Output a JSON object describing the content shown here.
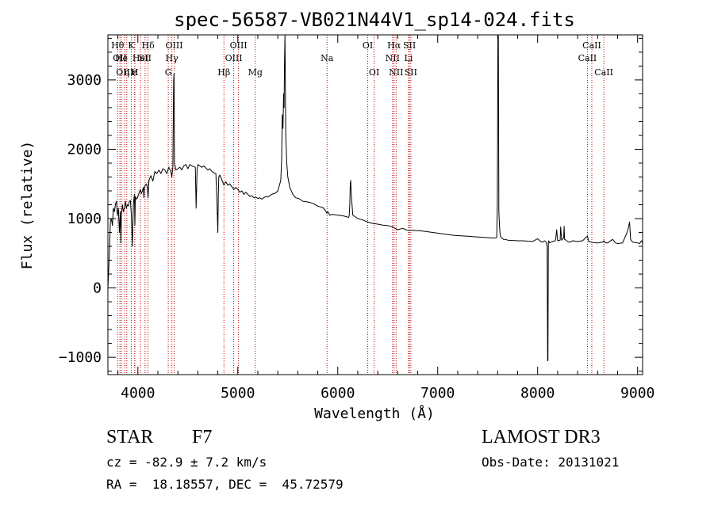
{
  "chart_data": {
    "type": "line",
    "title": "spec-56587-VB021N44V1_sp14-024.fits",
    "xlabel": "Wavelength (Å)",
    "ylabel": "Flux (relative)",
    "xlim": [
      3700,
      9050
    ],
    "ylim": [
      -1250,
      3650
    ],
    "xticks": [
      4000,
      5000,
      6000,
      7000,
      8000,
      9000
    ],
    "yticks": [
      -1000,
      0,
      1000,
      2000,
      3000
    ],
    "xtick_labels": [
      "4000",
      "5000",
      "6000",
      "7000",
      "8000",
      "9000"
    ],
    "ytick_labels": [
      "−1000",
      "0",
      "1000",
      "2000",
      "3000"
    ],
    "grid": false,
    "series": [
      {
        "color": "#000000",
        "x": [
          3700,
          3715,
          3725,
          3735,
          3745,
          3755,
          3765,
          3775,
          3785,
          3795,
          3805,
          3815,
          3825,
          3830,
          3835,
          3845,
          3855,
          3865,
          3875,
          3885,
          3895,
          3905,
          3915,
          3925,
          3935,
          3945,
          3955,
          3965,
          3970,
          3975,
          3985,
          3995,
          4005,
          4015,
          4025,
          4035,
          4045,
          4055,
          4060,
          4065,
          4075,
          4085,
          4095,
          4102,
          4110,
          4130,
          4150,
          4170,
          4190,
          4210,
          4230,
          4250,
          4270,
          4290,
          4310,
          4330,
          4340,
          4350,
          4358,
          4362,
          4366,
          4372,
          4380,
          4400,
          4420,
          4440,
          4460,
          4480,
          4500,
          4520,
          4540,
          4560,
          4575,
          4583,
          4592,
          4600,
          4620,
          4640,
          4660,
          4680,
          4700,
          4720,
          4740,
          4760,
          4780,
          4790,
          4800,
          4805,
          4810,
          4820,
          4840,
          4861,
          4880,
          4900,
          4920,
          4940,
          4960,
          4980,
          5000,
          5020,
          5040,
          5060,
          5080,
          5100,
          5120,
          5140,
          5160,
          5180,
          5200,
          5220,
          5240,
          5260,
          5280,
          5300,
          5320,
          5340,
          5360,
          5380,
          5400,
          5410,
          5420,
          5430,
          5438,
          5445,
          5452,
          5458,
          5463,
          5467,
          5472,
          5480,
          5490,
          5500,
          5520,
          5550,
          5580,
          5610,
          5650,
          5700,
          5750,
          5800,
          5850,
          5870,
          5890,
          5900,
          5920,
          5950,
          6000,
          6050,
          6080,
          6100,
          6110,
          6115,
          6120,
          6125,
          6130,
          6135,
          6150,
          6200,
          6250,
          6300,
          6350,
          6400,
          6450,
          6500,
          6550,
          6563,
          6570,
          6600,
          6650,
          6700,
          6750,
          6800,
          6850,
          6900,
          6950,
          7000,
          7050,
          7100,
          7150,
          7200,
          7250,
          7300,
          7350,
          7400,
          7450,
          7500,
          7550,
          7580,
          7590,
          7597,
          7602,
          7607,
          7612,
          7618,
          7625,
          7630,
          7640,
          7660,
          7680,
          7700,
          7750,
          7800,
          7850,
          7900,
          7950,
          8000,
          8030,
          8050,
          8070,
          8085,
          8095,
          8100,
          8103,
          8107,
          8111,
          8115,
          8120,
          8130,
          8150,
          8175,
          8180,
          8190,
          8200,
          8225,
          8230,
          8240,
          8260,
          8265,
          8270,
          8285,
          8290,
          8300,
          8320,
          8350,
          8400,
          8450,
          8498,
          8510,
          8520,
          8542,
          8550,
          8600,
          8650,
          8662,
          8680,
          8700,
          8750,
          8780,
          8800,
          8850,
          8900,
          8920,
          8930,
          8940,
          8950,
          9000,
          9020,
          9030,
          9040,
          9050
        ],
        "y": [
          0,
          500,
          950,
          1000,
          900,
          1150,
          1100,
          1200,
          1250,
          1050,
          1150,
          800,
          1100,
          650,
          1050,
          1200,
          1100,
          1150,
          1250,
          1150,
          1200,
          1180,
          1250,
          1260,
          1050,
          600,
          1200,
          1350,
          900,
          1320,
          1280,
          1300,
          1340,
          1380,
          1420,
          1360,
          1400,
          1450,
          1300,
          1450,
          1480,
          1500,
          1450,
          1300,
          1550,
          1620,
          1540,
          1680,
          1650,
          1700,
          1650,
          1720,
          1700,
          1650,
          1740,
          1680,
          1600,
          1750,
          3000,
          3100,
          1800,
          1760,
          1700,
          1720,
          1740,
          1700,
          1760,
          1780,
          1720,
          1780,
          1760,
          1750,
          1740,
          1150,
          1700,
          1780,
          1760,
          1740,
          1760,
          1730,
          1700,
          1720,
          1680,
          1660,
          1650,
          1300,
          800,
          1350,
          1600,
          1630,
          1560,
          1480,
          1530,
          1480,
          1500,
          1460,
          1420,
          1450,
          1420,
          1380,
          1400,
          1350,
          1380,
          1350,
          1320,
          1330,
          1300,
          1310,
          1290,
          1300,
          1280,
          1300,
          1320,
          1310,
          1330,
          1350,
          1360,
          1370,
          1400,
          1450,
          1500,
          1550,
          1850,
          2500,
          2300,
          2800,
          2600,
          3250,
          3650,
          2200,
          1800,
          1600,
          1450,
          1350,
          1300,
          1290,
          1250,
          1240,
          1220,
          1180,
          1160,
          1130,
          1080,
          1100,
          1050,
          1060,
          1050,
          1040,
          1030,
          1020,
          1020,
          1050,
          1200,
          1500,
          1550,
          1350,
          1050,
          1000,
          980,
          950,
          930,
          920,
          905,
          900,
          880,
          870,
          860,
          840,
          860,
          830,
          830,
          825,
          820,
          810,
          800,
          790,
          780,
          770,
          760,
          755,
          750,
          745,
          740,
          735,
          730,
          725,
          720,
          720,
          730,
          1200,
          3650,
          3650,
          1100,
          900,
          760,
          740,
          720,
          700,
          700,
          690,
          685,
          680,
          680,
          675,
          670,
          710,
          670,
          660,
          680,
          660,
          600,
          -1050,
          -1050,
          660,
          680,
          660,
          650,
          660,
          670,
          680,
          700,
          840,
          680,
          690,
          880,
          690,
          720,
          890,
          700,
          690,
          680,
          670,
          660,
          680,
          670,
          680,
          750,
          670,
          665,
          660,
          655,
          650,
          660,
          680,
          650,
          650,
          700,
          650,
          640,
          650,
          820,
          950,
          700,
          680,
          660,
          650,
          640,
          660,
          680,
          650
        ]
      }
    ],
    "line_markers": [
      {
        "wavelength": 3797,
        "label": "Hθ",
        "row": 1
      },
      {
        "wavelength": 3820,
        "label": "OII",
        "row": 2
      },
      {
        "wavelength": 3835,
        "label": "He",
        "row": 2
      },
      {
        "wavelength": 3869,
        "label": "OIII",
        "row": 3
      },
      {
        "wavelength": 3889,
        "label": "η",
        "row": 3
      },
      {
        "wavelength": 3934,
        "label": "K",
        "row": 1
      },
      {
        "wavelength": 3968,
        "label": "H",
        "row": 3
      },
      {
        "wavelength": 3970,
        "label": "ε",
        "row": 3
      },
      {
        "wavelength": 4026,
        "label": "HeI",
        "row": 2
      },
      {
        "wavelength": 4072,
        "label": "SII",
        "row": 2
      },
      {
        "wavelength": 4102,
        "label": "Hδ",
        "row": 1
      },
      {
        "wavelength": 4304,
        "label": "G",
        "row": 3
      },
      {
        "wavelength": 4340,
        "label": "Hγ",
        "row": 2
      },
      {
        "wavelength": 4363,
        "label": "OIII",
        "row": 1
      },
      {
        "wavelength": 4861,
        "label": "Hβ",
        "row": 3
      },
      {
        "wavelength": 4959,
        "label": "OIII",
        "row": 2
      },
      {
        "wavelength": 5007,
        "label": "OIII",
        "row": 1
      },
      {
        "wavelength": 5175,
        "label": "Mg",
        "row": 3
      },
      {
        "wavelength": 5893,
        "label": "Na",
        "row": 2
      },
      {
        "wavelength": 6300,
        "label": "OI",
        "row": 1
      },
      {
        "wavelength": 6364,
        "label": "OI",
        "row": 3
      },
      {
        "wavelength": 6548,
        "label": "NII",
        "row": 2
      },
      {
        "wavelength": 6563,
        "label": "Hα",
        "row": 1
      },
      {
        "wavelength": 6584,
        "label": "NII",
        "row": 3
      },
      {
        "wavelength": 6708,
        "label": "Li",
        "row": 2
      },
      {
        "wavelength": 6717,
        "label": "SII",
        "row": 1
      },
      {
        "wavelength": 6731,
        "label": "SII",
        "row": 3
      },
      {
        "wavelength": 8498,
        "label": "CaII",
        "row": 2
      },
      {
        "wavelength": 8542,
        "label": "CaII",
        "row": 1
      },
      {
        "wavelength": 8662,
        "label": "CaII",
        "row": 3
      }
    ]
  },
  "info": {
    "object_class": "STAR",
    "subclass": "F7",
    "redshift_text": "cz = -82.9 ± 7.2 km/s",
    "coords_text": "RA =  18.18557, DEC =  45.72579",
    "survey": "LAMOST DR3",
    "obs_date_text": "Obs-Date: 20131021"
  },
  "colors": {
    "ink": "#000000",
    "marker_line": "#c00000",
    "background": "#ffffff"
  }
}
